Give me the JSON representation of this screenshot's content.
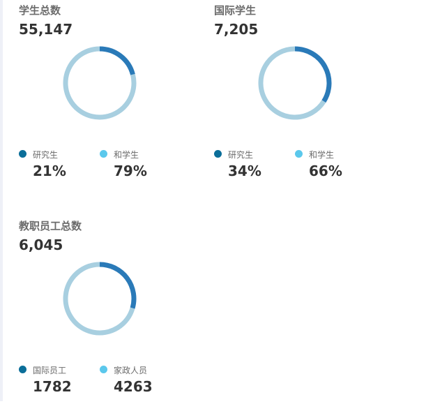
{
  "colors": {
    "primary": "#2a7ab8",
    "secondary": "#a8cfe0",
    "legend_dark": "#0b6e99",
    "legend_light": "#5bc8ec"
  },
  "panels": [
    {
      "title": "学生总数",
      "total": "55,147",
      "legend": [
        {
          "label": "研究生",
          "value": "21%"
        },
        {
          "label": "和学生",
          "value": "79%"
        }
      ]
    },
    {
      "title": "国际学生",
      "total": "7,205",
      "legend": [
        {
          "label": "研究生",
          "value": "34%"
        },
        {
          "label": "和学生",
          "value": "66%"
        }
      ]
    },
    {
      "title": "教职员工总数",
      "total": "6,045",
      "legend": [
        {
          "label": "国际员工",
          "value": "1782"
        },
        {
          "label": "家政人员",
          "value": "4263"
        }
      ]
    }
  ],
  "chart_data": [
    {
      "type": "pie",
      "title": "学生总数",
      "categories": [
        "研究生",
        "和学生"
      ],
      "values": [
        21,
        79
      ]
    },
    {
      "type": "pie",
      "title": "国际学生",
      "categories": [
        "研究生",
        "和学生"
      ],
      "values": [
        34,
        66
      ]
    },
    {
      "type": "pie",
      "title": "教职员工总数",
      "categories": [
        "国际员工",
        "家政人员"
      ],
      "values": [
        1782,
        4263
      ]
    }
  ]
}
